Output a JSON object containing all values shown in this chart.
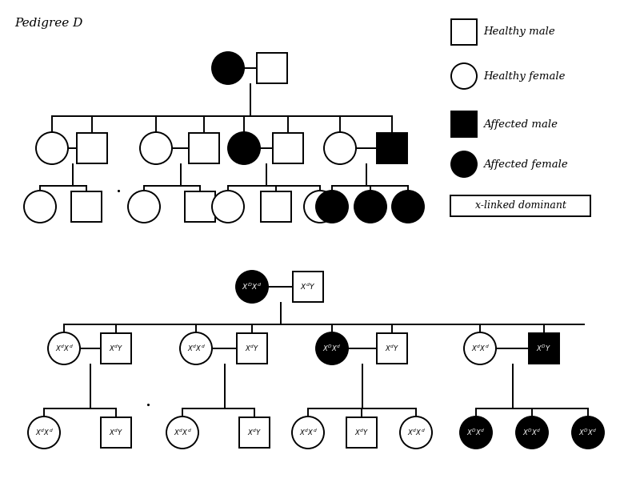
{
  "title": "Pedigree D",
  "bg_color": "#ffffff",
  "legend": {
    "healthy_male": "Healthy male",
    "healthy_female": "Healthy female",
    "affected_male": "Affected male",
    "affected_female": "Affected female",
    "label": "x-linked dominant"
  }
}
